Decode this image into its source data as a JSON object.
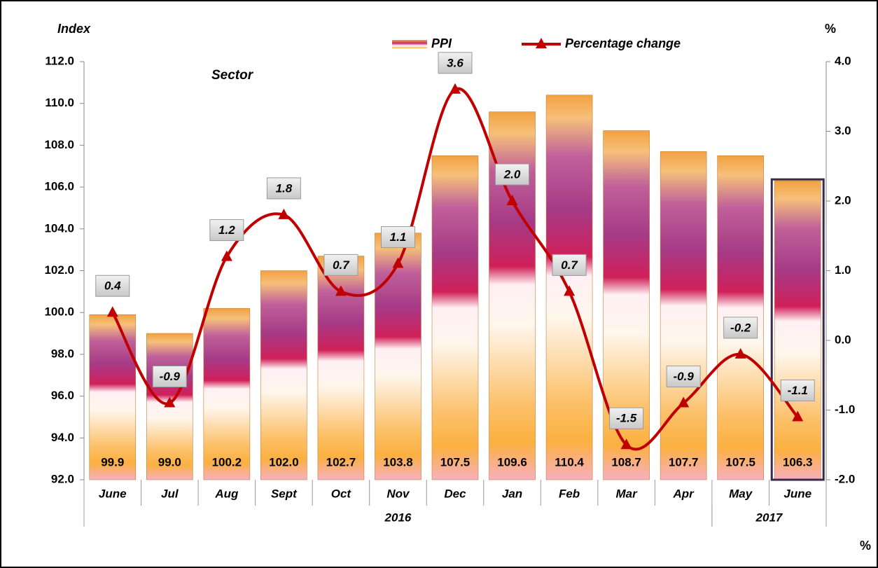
{
  "chart_data": {
    "type": "bar-line",
    "texts": {
      "y_label": "Index",
      "y2_label": "%",
      "subtitle": "Sector",
      "corner_note": "%"
    },
    "categories": [
      "June",
      "Jul",
      "Aug",
      "Sept",
      "Oct",
      "Nov",
      "Dec",
      "Jan",
      "Feb",
      "Mar",
      "Apr",
      "May",
      "June"
    ],
    "x_groups": [
      {
        "label": "2016",
        "first": 0,
        "last": 10
      },
      {
        "label": "2017",
        "first": 11,
        "last": 12
      }
    ],
    "series": [
      {
        "name": "PPI",
        "type": "bar",
        "color": "#f5a640",
        "values": [
          99.9,
          99.0,
          100.2,
          102.0,
          102.7,
          103.8,
          107.5,
          109.6,
          110.4,
          108.7,
          107.7,
          107.5,
          106.3
        ],
        "value_labels": [
          "99.9",
          "99.0",
          "100.2",
          "102.0",
          "102.7",
          "103.8",
          "107.5",
          "109.6",
          "110.4",
          "108.7",
          "107.7",
          "107.5",
          "106.3"
        ]
      },
      {
        "name": "Percentage change",
        "type": "line",
        "axis": "y2",
        "color": "#c00000",
        "values": [
          0.4,
          -0.9,
          1.2,
          1.8,
          0.7,
          1.1,
          3.6,
          2.0,
          0.7,
          -1.5,
          -0.9,
          -0.2,
          -1.1
        ],
        "value_labels": [
          "0.4",
          "-0.9",
          "1.2",
          "1.8",
          "0.7",
          "1.1",
          "3.6",
          "2.0",
          "0.7",
          "-1.5",
          "-0.9",
          "-0.2",
          "-1.1"
        ]
      }
    ],
    "ylim": [
      92,
      112
    ],
    "yticks": [
      {
        "value": 92,
        "label": "92.0"
      },
      {
        "value": 94,
        "label": "94.0"
      },
      {
        "value": 96,
        "label": "96.0"
      },
      {
        "value": 98,
        "label": "98.0"
      },
      {
        "value": 100,
        "label": "100.0"
      },
      {
        "value": 102,
        "label": "102.0"
      },
      {
        "value": 104,
        "label": "104.0"
      },
      {
        "value": 106,
        "label": "106.0"
      },
      {
        "value": 108,
        "label": "108.0"
      },
      {
        "value": 110,
        "label": "110.0"
      },
      {
        "value": 112,
        "label": "112.0"
      }
    ],
    "y2lim": [
      -2,
      4
    ],
    "y2ticks": [
      {
        "value": -2,
        "label": "-2.0"
      },
      {
        "value": -1,
        "label": "-1.0"
      },
      {
        "value": 0,
        "label": "0.0"
      },
      {
        "value": 1,
        "label": "1.0"
      },
      {
        "value": 2,
        "label": "2.0"
      },
      {
        "value": 3,
        "label": "3.0"
      },
      {
        "value": 4,
        "label": "4.0"
      }
    ],
    "legend": "top",
    "grid": false
  }
}
